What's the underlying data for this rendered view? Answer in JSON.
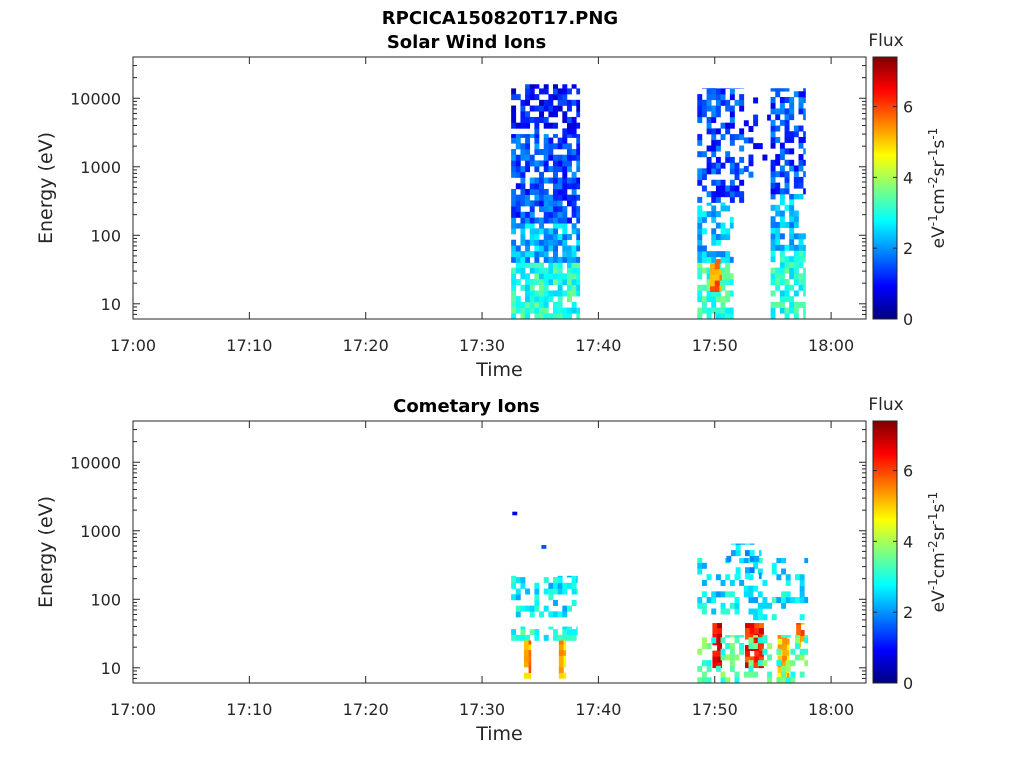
{
  "figure_title": "RPCICA150820T17.PNG",
  "colormap": [
    "#00007f",
    "#0000ff",
    "#007fff",
    "#00ffff",
    "#7fff7f",
    "#ffff00",
    "#ff7f00",
    "#ff0000",
    "#7f0000"
  ],
  "chart_data": [
    {
      "type": "heatmap",
      "title": "Solar Wind Ions",
      "xlabel": "Time",
      "ylabel": "Energy (eV)",
      "x_ticks": [
        "17:00",
        "17:10",
        "17:20",
        "17:30",
        "17:40",
        "17:50",
        "18:00"
      ],
      "x_tick_minutes": [
        0,
        10,
        20,
        30,
        40,
        50,
        60
      ],
      "xlim_minutes": [
        0,
        63
      ],
      "y_scale": "log",
      "y_ticks": [
        "10",
        "100",
        "1000",
        "10000"
      ],
      "y_tick_values": [
        10,
        100,
        1000,
        10000
      ],
      "ylim": [
        6,
        40000
      ],
      "colorbar": {
        "title": "Flux",
        "unit": "eV-1cm-2sr-1s-1",
        "ticks": [
          "0",
          "2",
          "4",
          "6"
        ],
        "tick_values": [
          0,
          2,
          4,
          6
        ],
        "range": [
          0,
          7.4
        ]
      },
      "blocks": [
        {
          "t0": 32.5,
          "t1": 38.4,
          "e0": 6,
          "e1": 40,
          "flux": 3.0,
          "density": 0.8
        },
        {
          "t0": 32.5,
          "t1": 38.4,
          "e0": 40,
          "e1": 150,
          "flux": 2.2,
          "density": 0.78
        },
        {
          "t0": 32.5,
          "t1": 38.4,
          "e0": 150,
          "e1": 3000,
          "flux": 1.5,
          "density": 0.75
        },
        {
          "t0": 32.5,
          "t1": 38.4,
          "e0": 3000,
          "e1": 16000,
          "flux": 1.0,
          "density": 0.6
        },
        {
          "t0": 48.5,
          "t1": 51.6,
          "e0": 6,
          "e1": 40,
          "flux": 3.2,
          "density": 0.75
        },
        {
          "t0": 49.6,
          "t1": 50.6,
          "e0": 15,
          "e1": 45,
          "flux": 5.6,
          "density": 0.9
        },
        {
          "t0": 48.5,
          "t1": 51.6,
          "e0": 40,
          "e1": 300,
          "flux": 2.3,
          "density": 0.6
        },
        {
          "t0": 48.5,
          "t1": 52.5,
          "e0": 300,
          "e1": 14000,
          "flux": 1.4,
          "density": 0.5
        },
        {
          "t0": 52.5,
          "t1": 54.8,
          "e0": 700,
          "e1": 12000,
          "flux": 1.2,
          "density": 0.2
        },
        {
          "t0": 54.8,
          "t1": 57.8,
          "e0": 6,
          "e1": 60,
          "flux": 3.0,
          "density": 0.7
        },
        {
          "t0": 54.8,
          "t1": 57.8,
          "e0": 60,
          "e1": 400,
          "flux": 2.2,
          "density": 0.6
        },
        {
          "t0": 54.8,
          "t1": 57.8,
          "e0": 400,
          "e1": 14000,
          "flux": 1.4,
          "density": 0.6
        }
      ]
    },
    {
      "type": "heatmap",
      "title": "Cometary Ions",
      "xlabel": "Time",
      "ylabel": "Energy (eV)",
      "x_ticks": [
        "17:00",
        "17:10",
        "17:20",
        "17:30",
        "17:40",
        "17:50",
        "18:00"
      ],
      "x_tick_minutes": [
        0,
        10,
        20,
        30,
        40,
        50,
        60
      ],
      "xlim_minutes": [
        0,
        63
      ],
      "y_scale": "log",
      "y_ticks": [
        "10",
        "100",
        "1000",
        "10000"
      ],
      "y_tick_values": [
        10,
        100,
        1000,
        10000
      ],
      "ylim": [
        6,
        40000
      ],
      "colorbar": {
        "title": "Flux",
        "unit": "eV-1cm-2sr-1s-1",
        "ticks": [
          "0",
          "2",
          "4",
          "6"
        ],
        "tick_values": [
          0,
          2,
          4,
          6
        ],
        "range": [
          0,
          7.4
        ]
      },
      "blocks": [
        {
          "t0": 32.6,
          "t1": 33.0,
          "e0": 1700,
          "e1": 1900,
          "flux": 1.0,
          "density": 1.0
        },
        {
          "t0": 35.1,
          "t1": 35.5,
          "e0": 550,
          "e1": 620,
          "flux": 1.2,
          "density": 1.0
        },
        {
          "t0": 32.5,
          "t1": 38.2,
          "e0": 55,
          "e1": 220,
          "flux": 2.6,
          "density": 0.45
        },
        {
          "t0": 32.5,
          "t1": 38.2,
          "e0": 25,
          "e1": 40,
          "flux": 3.0,
          "density": 0.7
        },
        {
          "t0": 33.6,
          "t1": 34.2,
          "e0": 7,
          "e1": 25,
          "flux": 5.4,
          "density": 0.95
        },
        {
          "t0": 36.6,
          "t1": 37.2,
          "e0": 7,
          "e1": 25,
          "flux": 5.0,
          "density": 0.9
        },
        {
          "t0": 48.5,
          "t1": 58.0,
          "e0": 50,
          "e1": 400,
          "flux": 2.6,
          "density": 0.35
        },
        {
          "t0": 51.0,
          "t1": 54.0,
          "e0": 200,
          "e1": 650,
          "flux": 2.4,
          "density": 0.25
        },
        {
          "t0": 49.8,
          "t1": 50.6,
          "e0": 10,
          "e1": 45,
          "flux": 6.6,
          "density": 0.95
        },
        {
          "t0": 52.6,
          "t1": 54.2,
          "e0": 10,
          "e1": 45,
          "flux": 6.3,
          "density": 0.95
        },
        {
          "t0": 55.4,
          "t1": 56.4,
          "e0": 7,
          "e1": 30,
          "flux": 5.0,
          "density": 0.85
        },
        {
          "t0": 57.0,
          "t1": 57.7,
          "e0": 20,
          "e1": 45,
          "flux": 5.6,
          "density": 0.85
        },
        {
          "t0": 48.5,
          "t1": 58.0,
          "e0": 6,
          "e1": 30,
          "flux": 3.4,
          "density": 0.35
        }
      ]
    }
  ]
}
